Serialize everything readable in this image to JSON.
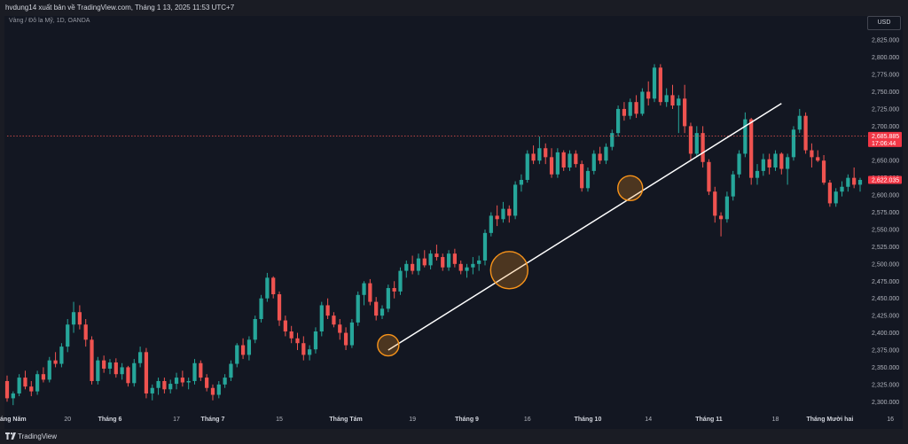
{
  "header": {
    "publisher_text": "hvdung14 xuất bản về TradingView.com, Tháng 1 13, 2025 11:53 UTC+7"
  },
  "symbol_label": "Vàng / Đô la Mỹ, 1D, OANDA",
  "currency_button": "USD",
  "footer": {
    "brand": "TradingView"
  },
  "colors": {
    "up": "#26a69a",
    "down": "#ef5350",
    "background": "#131722",
    "trendline": "#ffffff",
    "circle": "#f7931a"
  },
  "chart_data": {
    "type": "candlestick",
    "title": "",
    "xlabel": "",
    "ylabel": "",
    "ylim": [
      2287.5,
      2860
    ],
    "grid": false,
    "y_ticks": [
      "2,825.000",
      "2,800.000",
      "2,775.000",
      "2,750.000",
      "2,725.000",
      "2,700.000",
      "2,675.000",
      "2,650.000",
      "2,625.000",
      "2,600.000",
      "2,575.000",
      "2,550.000",
      "2,525.000",
      "2,500.000",
      "2,475.000",
      "2,450.000",
      "2,425.000",
      "2,400.000",
      "2,375.000",
      "2,350.000",
      "2,325.000",
      "2,300.000"
    ],
    "x_ticks": [
      {
        "label": "áng Năm",
        "index": 1
      },
      {
        "label": "20",
        "index": 10
      },
      {
        "label": "Tháng 6",
        "index": 17
      },
      {
        "label": "17",
        "index": 28
      },
      {
        "label": "Tháng 7",
        "index": 34
      },
      {
        "label": "15",
        "index": 45
      },
      {
        "label": "Tháng Tám",
        "index": 56
      },
      {
        "label": "19",
        "index": 67
      },
      {
        "label": "Tháng 9",
        "index": 76
      },
      {
        "label": "16",
        "index": 86
      },
      {
        "label": "Tháng 10",
        "index": 96
      },
      {
        "label": "14",
        "index": 106
      },
      {
        "label": "Tháng 11",
        "index": 116
      },
      {
        "label": "18",
        "index": 127
      },
      {
        "label": "Tháng Mười hai",
        "index": 136
      },
      {
        "label": "16",
        "index": 146
      }
    ],
    "last_price": {
      "value": 2685.885,
      "label": "2,685.885",
      "countdown": "17:06:44"
    },
    "ref_price": {
      "value": 2622.035,
      "label": "2,622.035"
    },
    "trendline": {
      "from": {
        "index": 63,
        "price": 2375
      },
      "to": {
        "index": 128,
        "price": 2733
      }
    },
    "circles": [
      {
        "index": 63,
        "price": 2382,
        "label": ""
      },
      {
        "index": 83,
        "price": 2491,
        "label": ""
      },
      {
        "index": 103,
        "price": 2610,
        "label": ""
      }
    ],
    "candles": [
      [
        2330,
        2338,
        2300,
        2305
      ],
      [
        2305,
        2315,
        2295,
        2312
      ],
      [
        2312,
        2340,
        2308,
        2335
      ],
      [
        2335,
        2345,
        2318,
        2322
      ],
      [
        2322,
        2330,
        2308,
        2315
      ],
      [
        2315,
        2345,
        2310,
        2340
      ],
      [
        2340,
        2350,
        2328,
        2332
      ],
      [
        2332,
        2365,
        2328,
        2360
      ],
      [
        2360,
        2372,
        2350,
        2355
      ],
      [
        2355,
        2385,
        2350,
        2380
      ],
      [
        2380,
        2420,
        2372,
        2412
      ],
      [
        2412,
        2445,
        2400,
        2430
      ],
      [
        2430,
        2440,
        2405,
        2412
      ],
      [
        2412,
        2420,
        2380,
        2390
      ],
      [
        2390,
        2395,
        2325,
        2330
      ],
      [
        2330,
        2365,
        2325,
        2360
      ],
      [
        2360,
        2367,
        2342,
        2348
      ],
      [
        2348,
        2362,
        2340,
        2357
      ],
      [
        2357,
        2363,
        2335,
        2340
      ],
      [
        2340,
        2356,
        2332,
        2350
      ],
      [
        2350,
        2352,
        2322,
        2327
      ],
      [
        2327,
        2362,
        2322,
        2356
      ],
      [
        2356,
        2380,
        2350,
        2372
      ],
      [
        2372,
        2378,
        2305,
        2312
      ],
      [
        2312,
        2325,
        2302,
        2320
      ],
      [
        2320,
        2335,
        2310,
        2330
      ],
      [
        2330,
        2335,
        2312,
        2318
      ],
      [
        2318,
        2332,
        2312,
        2326
      ],
      [
        2326,
        2342,
        2318,
        2335
      ],
      [
        2335,
        2345,
        2322,
        2328
      ],
      [
        2328,
        2335,
        2318,
        2330
      ],
      [
        2330,
        2362,
        2325,
        2356
      ],
      [
        2356,
        2360,
        2330,
        2335
      ],
      [
        2335,
        2340,
        2315,
        2320
      ],
      [
        2320,
        2325,
        2302,
        2310
      ],
      [
        2310,
        2330,
        2305,
        2325
      ],
      [
        2325,
        2340,
        2320,
        2335
      ],
      [
        2335,
        2360,
        2330,
        2355
      ],
      [
        2355,
        2385,
        2350,
        2382
      ],
      [
        2382,
        2392,
        2362,
        2368
      ],
      [
        2368,
        2395,
        2360,
        2390
      ],
      [
        2390,
        2425,
        2385,
        2420
      ],
      [
        2420,
        2455,
        2415,
        2450
      ],
      [
        2450,
        2487,
        2445,
        2480
      ],
      [
        2480,
        2482,
        2450,
        2456
      ],
      [
        2456,
        2460,
        2410,
        2418
      ],
      [
        2418,
        2425,
        2395,
        2402
      ],
      [
        2402,
        2410,
        2385,
        2392
      ],
      [
        2392,
        2400,
        2375,
        2385
      ],
      [
        2385,
        2395,
        2360,
        2368
      ],
      [
        2368,
        2382,
        2360,
        2376
      ],
      [
        2376,
        2408,
        2370,
        2402
      ],
      [
        2402,
        2445,
        2395,
        2440
      ],
      [
        2440,
        2450,
        2420,
        2425
      ],
      [
        2425,
        2430,
        2408,
        2412
      ],
      [
        2412,
        2420,
        2390,
        2400
      ],
      [
        2400,
        2408,
        2375,
        2382
      ],
      [
        2382,
        2420,
        2378,
        2415
      ],
      [
        2415,
        2460,
        2410,
        2455
      ],
      [
        2455,
        2475,
        2440,
        2472
      ],
      [
        2472,
        2478,
        2440,
        2445
      ],
      [
        2445,
        2452,
        2418,
        2425
      ],
      [
        2425,
        2440,
        2420,
        2435
      ],
      [
        2435,
        2470,
        2430,
        2465
      ],
      [
        2465,
        2475,
        2450,
        2460
      ],
      [
        2460,
        2495,
        2455,
        2490
      ],
      [
        2490,
        2505,
        2480,
        2500
      ],
      [
        2500,
        2512,
        2485,
        2490
      ],
      [
        2490,
        2515,
        2484,
        2508
      ],
      [
        2508,
        2520,
        2495,
        2498
      ],
      [
        2498,
        2520,
        2492,
        2515
      ],
      [
        2515,
        2528,
        2505,
        2510
      ],
      [
        2510,
        2515,
        2490,
        2495
      ],
      [
        2495,
        2520,
        2490,
        2515
      ],
      [
        2515,
        2522,
        2495,
        2500
      ],
      [
        2500,
        2505,
        2485,
        2490
      ],
      [
        2490,
        2500,
        2480,
        2495
      ],
      [
        2495,
        2510,
        2485,
        2500
      ],
      [
        2500,
        2512,
        2490,
        2505
      ],
      [
        2505,
        2550,
        2498,
        2545
      ],
      [
        2545,
        2575,
        2540,
        2570
      ],
      [
        2570,
        2585,
        2555,
        2565
      ],
      [
        2565,
        2590,
        2560,
        2580
      ],
      [
        2580,
        2585,
        2560,
        2570
      ],
      [
        2570,
        2620,
        2565,
        2615
      ],
      [
        2615,
        2630,
        2605,
        2622
      ],
      [
        2622,
        2665,
        2618,
        2660
      ],
      [
        2660,
        2672,
        2645,
        2650
      ],
      [
        2650,
        2685,
        2645,
        2668
      ],
      [
        2668,
        2675,
        2645,
        2655
      ],
      [
        2655,
        2668,
        2625,
        2630
      ],
      [
        2630,
        2668,
        2625,
        2662
      ],
      [
        2662,
        2665,
        2635,
        2640
      ],
      [
        2640,
        2665,
        2635,
        2660
      ],
      [
        2660,
        2665,
        2640,
        2645
      ],
      [
        2645,
        2650,
        2605,
        2610
      ],
      [
        2610,
        2640,
        2605,
        2635
      ],
      [
        2635,
        2665,
        2630,
        2660
      ],
      [
        2660,
        2670,
        2645,
        2650
      ],
      [
        2650,
        2675,
        2645,
        2670
      ],
      [
        2670,
        2695,
        2665,
        2690
      ],
      [
        2690,
        2730,
        2685,
        2725
      ],
      [
        2725,
        2735,
        2708,
        2715
      ],
      [
        2715,
        2740,
        2710,
        2735
      ],
      [
        2735,
        2745,
        2712,
        2718
      ],
      [
        2718,
        2755,
        2715,
        2750
      ],
      [
        2750,
        2765,
        2730,
        2740
      ],
      [
        2740,
        2790,
        2735,
        2785
      ],
      [
        2785,
        2790,
        2730,
        2735
      ],
      [
        2735,
        2755,
        2728,
        2745
      ],
      [
        2745,
        2760,
        2725,
        2730
      ],
      [
        2730,
        2745,
        2690,
        2740
      ],
      [
        2740,
        2760,
        2690,
        2700
      ],
      [
        2700,
        2705,
        2650,
        2660
      ],
      [
        2660,
        2700,
        2655,
        2690
      ],
      [
        2690,
        2700,
        2640,
        2648
      ],
      [
        2648,
        2652,
        2600,
        2605
      ],
      [
        2605,
        2612,
        2560,
        2570
      ],
      [
        2570,
        2575,
        2540,
        2565
      ],
      [
        2565,
        2605,
        2560,
        2598
      ],
      [
        2598,
        2635,
        2592,
        2630
      ],
      [
        2630,
        2665,
        2625,
        2660
      ],
      [
        2660,
        2720,
        2655,
        2710
      ],
      [
        2710,
        2712,
        2615,
        2625
      ],
      [
        2625,
        2645,
        2615,
        2635
      ],
      [
        2635,
        2660,
        2628,
        2652
      ],
      [
        2652,
        2660,
        2630,
        2640
      ],
      [
        2640,
        2665,
        2635,
        2660
      ],
      [
        2660,
        2662,
        2630,
        2638
      ],
      [
        2638,
        2660,
        2615,
        2655
      ],
      [
        2655,
        2700,
        2650,
        2695
      ],
      [
        2695,
        2725,
        2690,
        2715
      ],
      [
        2715,
        2720,
        2660,
        2665
      ],
      [
        2665,
        2675,
        2640,
        2655
      ],
      [
        2655,
        2665,
        2648,
        2650
      ],
      [
        2650,
        2658,
        2615,
        2618
      ],
      [
        2618,
        2622,
        2583,
        2588
      ],
      [
        2588,
        2610,
        2583,
        2605
      ],
      [
        2605,
        2620,
        2598,
        2612
      ],
      [
        2612,
        2630,
        2605,
        2625
      ],
      [
        2625,
        2640,
        2610,
        2615
      ],
      [
        2615,
        2625,
        2605,
        2622
      ]
    ]
  }
}
